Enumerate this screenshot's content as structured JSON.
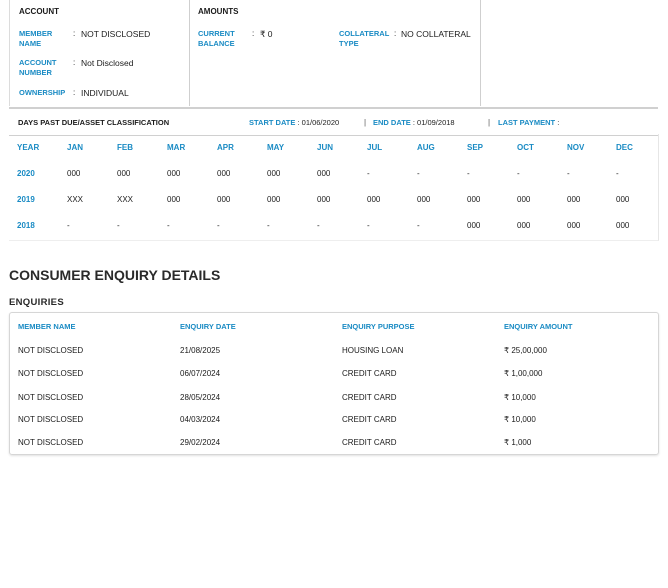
{
  "account": {
    "title": "ACCOUNT",
    "rows": [
      {
        "label": "MEMBER NAME",
        "value": "NOT DISCLOSED"
      },
      {
        "label": "ACCOUNT NUMBER",
        "value": "Not Disclosed"
      },
      {
        "label": "OWNERSHIP",
        "value": "INDIVIDUAL"
      }
    ]
  },
  "amounts": {
    "title": "AMOUNTS",
    "current_balance_label": "CURRENT BALANCE",
    "current_balance_value": "₹ 0",
    "collateral_label": "COLLATERAL TYPE",
    "collateral_value": "NO COLLATERAL"
  },
  "dpd": {
    "title": "DAYS PAST DUE/ASSET CLASSIFICATION",
    "start_label": "START DATE",
    "start_value": ": 01/06/2020",
    "end_label": "END DATE",
    "end_value": ": 01/09/2018",
    "last_payment_label": "LAST PAYMENT",
    "last_payment_value": ":",
    "separator": "|",
    "headers": [
      "YEAR",
      "JAN",
      "FEB",
      "MAR",
      "APR",
      "MAY",
      "JUN",
      "JUL",
      "AUG",
      "SEP",
      "OCT",
      "NOV",
      "DEC"
    ],
    "rows": [
      {
        "year": "2020",
        "values": [
          "000",
          "000",
          "000",
          "000",
          "000",
          "000",
          "-",
          "-",
          "-",
          "-",
          "-",
          "-"
        ]
      },
      {
        "year": "2019",
        "values": [
          "XXX",
          "XXX",
          "000",
          "000",
          "000",
          "000",
          "000",
          "000",
          "000",
          "000",
          "000",
          "000"
        ]
      },
      {
        "year": "2018",
        "values": [
          "-",
          "-",
          "-",
          "-",
          "-",
          "-",
          "-",
          "-",
          "000",
          "000",
          "000",
          "000"
        ]
      }
    ]
  },
  "enquiry": {
    "heading": "CONSUMER ENQUIRY DETAILS",
    "subheading": "ENQUIRIES",
    "headers": [
      "MEMBER NAME",
      "ENQUIRY DATE",
      "ENQUIRY PURPOSE",
      "ENQUIRY AMOUNT"
    ],
    "rows": [
      [
        "NOT DISCLOSED",
        "21/08/2025",
        "HOUSING LOAN",
        "₹ 25,00,000"
      ],
      [
        "NOT DISCLOSED",
        "06/07/2024",
        "CREDIT CARD",
        "₹ 1,00,000"
      ],
      [
        "NOT DISCLOSED",
        "28/05/2024",
        "CREDIT CARD",
        "₹ 10,000"
      ],
      [
        "NOT DISCLOSED",
        "04/03/2024",
        "CREDIT CARD",
        "₹ 10,000"
      ],
      [
        "NOT DISCLOSED",
        "29/02/2024",
        "CREDIT CARD",
        "₹ 1,000"
      ]
    ]
  }
}
